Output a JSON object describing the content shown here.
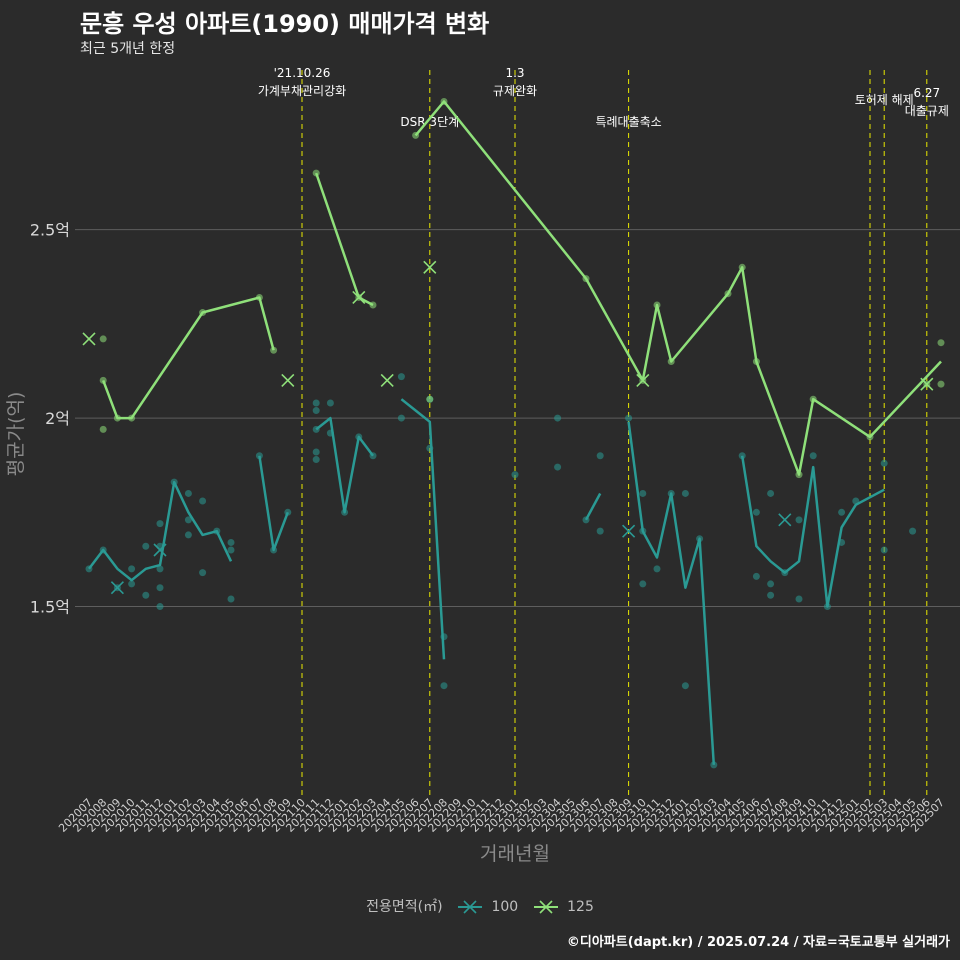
{
  "chart_data": {
    "type": "line",
    "title": "문흥 우성 아파트(1990) 매매가격 변화",
    "subtitle": "최근 5개년 한정",
    "xlabel": "거래년월",
    "ylabel": "평균가(억)",
    "caption": "©디아파트(dapt.kr) / 2025.07.24 / 자료=국토교통부 실거래가",
    "ylim": [
      1.0,
      2.95
    ],
    "y_ticks": [
      {
        "value": 1.5,
        "label": "1.5억"
      },
      {
        "value": 2.0,
        "label": "2억"
      },
      {
        "value": 2.5,
        "label": "2.5억"
      }
    ],
    "grid": true,
    "legend_title": "전용면적(㎡)",
    "legend_position": "bottom",
    "categories": [
      "202007",
      "202008",
      "202009",
      "202010",
      "202011",
      "202012",
      "202101",
      "202102",
      "202103",
      "202104",
      "202105",
      "202106",
      "202107",
      "202108",
      "202109",
      "202110",
      "202111",
      "202112",
      "202201",
      "202202",
      "202203",
      "202204",
      "202205",
      "202206",
      "202207",
      "202208",
      "202209",
      "202210",
      "202211",
      "202212",
      "202301",
      "202302",
      "202303",
      "202304",
      "202305",
      "202306",
      "202307",
      "202308",
      "202309",
      "202310",
      "202311",
      "202312",
      "202401",
      "202402",
      "202403",
      "202404",
      "202405",
      "202406",
      "202407",
      "202408",
      "202409",
      "202410",
      "202411",
      "202412",
      "202501",
      "202502",
      "202503",
      "202504",
      "202505",
      "202506",
      "202507"
    ],
    "events": [
      {
        "x": "202110",
        "label": "'21.10.26\n가계부채관리강화"
      },
      {
        "x": "202207",
        "label": "DSR 3단계"
      },
      {
        "x": "202301",
        "label": "1.3\n규제완화"
      },
      {
        "x": "202309",
        "label": "특례대출축소"
      },
      {
        "x": "202502",
        "label": ""
      },
      {
        "x": "202503",
        "label": "토허제 해제"
      },
      {
        "x": "202506",
        "label": "6.27\n대출규제"
      }
    ],
    "series": [
      {
        "name": "100",
        "color": "#2a9a94",
        "line": [
          [
            "202007",
            1.6
          ],
          [
            "202008",
            1.65
          ],
          [
            "202009",
            1.6
          ],
          [
            "202010",
            1.57
          ],
          [
            "202011",
            1.6
          ],
          [
            "202012",
            1.61
          ],
          [
            "202101",
            1.83
          ],
          [
            "202102",
            1.75
          ],
          [
            "202103",
            1.69
          ],
          [
            "202104",
            1.7
          ],
          [
            "202105",
            1.62
          ],
          null,
          [
            "202107",
            1.9
          ],
          [
            "202108",
            1.65
          ],
          [
            "202109",
            1.75
          ],
          null,
          [
            "202111",
            1.97
          ],
          [
            "202112",
            2.0
          ],
          [
            "202201",
            1.75
          ],
          [
            "202202",
            1.95
          ],
          [
            "202203",
            1.9
          ],
          null,
          [
            "202205",
            2.05
          ],
          [
            "202206",
            2.02
          ],
          [
            "202207",
            1.99
          ],
          [
            "202208",
            1.36
          ],
          null,
          [
            "202306",
            1.73
          ],
          [
            "202307",
            1.8
          ],
          null,
          [
            "202309",
            1.99
          ],
          [
            "202310",
            1.7
          ],
          [
            "202311",
            1.63
          ],
          [
            "202312",
            1.8
          ],
          [
            "202401",
            1.55
          ],
          [
            "202402",
            1.68
          ],
          [
            "202403",
            1.08
          ],
          null,
          [
            "202405",
            1.9
          ],
          [
            "202406",
            1.66
          ],
          [
            "202407",
            1.62
          ],
          [
            "202408",
            1.59
          ],
          [
            "202409",
            1.62
          ],
          [
            "202410",
            1.87
          ],
          [
            "202411",
            1.5
          ],
          [
            "202412",
            1.71
          ],
          [
            "202501",
            1.77
          ],
          [
            "202503",
            1.81
          ]
        ],
        "points": [
          [
            "202007",
            1.6
          ],
          [
            "202008",
            1.65
          ],
          [
            "202009",
            1.55
          ],
          [
            "202010",
            1.6
          ],
          [
            "202010",
            1.56
          ],
          [
            "202011",
            1.53
          ],
          [
            "202011",
            1.66
          ],
          [
            "202012",
            1.72
          ],
          [
            "202012",
            1.66
          ],
          [
            "202012",
            1.6
          ],
          [
            "202012",
            1.55
          ],
          [
            "202012",
            1.5
          ],
          [
            "202101",
            1.83
          ],
          [
            "202102",
            1.8
          ],
          [
            "202102",
            1.73
          ],
          [
            "202102",
            1.69
          ],
          [
            "202103",
            1.78
          ],
          [
            "202103",
            1.59
          ],
          [
            "202104",
            1.7
          ],
          [
            "202105",
            1.52
          ],
          [
            "202105",
            1.65
          ],
          [
            "202105",
            1.67
          ],
          [
            "202107",
            1.9
          ],
          [
            "202108",
            1.65
          ],
          [
            "202109",
            1.75
          ],
          [
            "202111",
            2.04
          ],
          [
            "202111",
            2.02
          ],
          [
            "202111",
            1.97
          ],
          [
            "202111",
            1.91
          ],
          [
            "202111",
            1.89
          ],
          [
            "202112",
            2.04
          ],
          [
            "202112",
            1.96
          ],
          [
            "202201",
            1.75
          ],
          [
            "202202",
            1.95
          ],
          [
            "202203",
            1.9
          ],
          [
            "202205",
            2.11
          ],
          [
            "202205",
            2.0
          ],
          [
            "202207",
            2.05
          ],
          [
            "202207",
            1.92
          ],
          [
            "202208",
            1.42
          ],
          [
            "202208",
            1.29
          ],
          [
            "202301",
            1.85
          ],
          [
            "202304",
            2.0
          ],
          [
            "202304",
            1.87
          ],
          [
            "202306",
            1.73
          ],
          [
            "202307",
            1.9
          ],
          [
            "202307",
            1.7
          ],
          [
            "202309",
            2.0
          ],
          [
            "202310",
            1.8
          ],
          [
            "202310",
            1.7
          ],
          [
            "202310",
            1.56
          ],
          [
            "202311",
            1.6
          ],
          [
            "202312",
            1.8
          ],
          [
            "202401",
            1.8
          ],
          [
            "202401",
            1.29
          ],
          [
            "202402",
            1.68
          ],
          [
            "202403",
            1.08
          ],
          [
            "202405",
            1.9
          ],
          [
            "202406",
            1.75
          ],
          [
            "202406",
            1.58
          ],
          [
            "202407",
            1.8
          ],
          [
            "202407",
            1.56
          ],
          [
            "202407",
            1.53
          ],
          [
            "202408",
            1.59
          ],
          [
            "202409",
            1.73
          ],
          [
            "202409",
            1.52
          ],
          [
            "202410",
            1.9
          ],
          [
            "202411",
            1.5
          ],
          [
            "202412",
            1.75
          ],
          [
            "202412",
            1.67
          ],
          [
            "202501",
            1.78
          ],
          [
            "202503",
            1.88
          ],
          [
            "202503",
            1.65
          ],
          [
            "202505",
            1.7
          ]
        ],
        "crosses": [
          [
            "202009",
            1.55
          ],
          [
            "202012",
            1.65
          ],
          [
            "202309",
            1.7
          ],
          [
            "202408",
            1.73
          ]
        ]
      },
      {
        "name": "125",
        "color": "#8fe07a",
        "line": [
          [
            "202008",
            2.1
          ],
          [
            "202009",
            2.0
          ],
          [
            "202010",
            2.0
          ],
          [
            "202103",
            2.28
          ],
          [
            "202107",
            2.32
          ],
          [
            "202108",
            2.18
          ],
          null,
          [
            "202111",
            2.65
          ],
          [
            "202202",
            2.32
          ],
          [
            "202203",
            2.3
          ],
          null,
          [
            "202206",
            2.75
          ],
          [
            "202208",
            2.84
          ],
          [
            "202306",
            2.37
          ],
          [
            "202310",
            2.1
          ],
          [
            "202311",
            2.3
          ],
          [
            "202312",
            2.15
          ],
          [
            "202404",
            2.33
          ],
          [
            "202405",
            2.4
          ],
          [
            "202406",
            2.15
          ],
          [
            "202409",
            1.85
          ],
          [
            "202410",
            2.05
          ],
          [
            "202502",
            1.95
          ],
          [
            "202507",
            2.15
          ]
        ],
        "points": [
          [
            "202008",
            2.21
          ],
          [
            "202008",
            2.1
          ],
          [
            "202008",
            1.97
          ],
          [
            "202009",
            2.0
          ],
          [
            "202010",
            2.0
          ],
          [
            "202103",
            2.28
          ],
          [
            "202107",
            2.32
          ],
          [
            "202108",
            2.18
          ],
          [
            "202111",
            2.65
          ],
          [
            "202202",
            2.32
          ],
          [
            "202203",
            2.3
          ],
          [
            "202206",
            2.75
          ],
          [
            "202207",
            2.05
          ],
          [
            "202208",
            2.84
          ],
          [
            "202306",
            2.37
          ],
          [
            "202310",
            2.1
          ],
          [
            "202311",
            2.3
          ],
          [
            "202312",
            2.15
          ],
          [
            "202404",
            2.33
          ],
          [
            "202405",
            2.4
          ],
          [
            "202406",
            2.15
          ],
          [
            "202409",
            1.85
          ],
          [
            "202410",
            2.05
          ],
          [
            "202502",
            1.95
          ],
          [
            "202506",
            2.09
          ],
          [
            "202507",
            2.2
          ],
          [
            "202507",
            2.09
          ]
        ],
        "crosses": [
          [
            "202007",
            2.21
          ],
          [
            "202109",
            2.1
          ],
          [
            "202202",
            2.32
          ],
          [
            "202204",
            2.1
          ],
          [
            "202207",
            2.4
          ],
          [
            "202310",
            2.1
          ],
          [
            "202506",
            2.09
          ]
        ]
      }
    ]
  }
}
